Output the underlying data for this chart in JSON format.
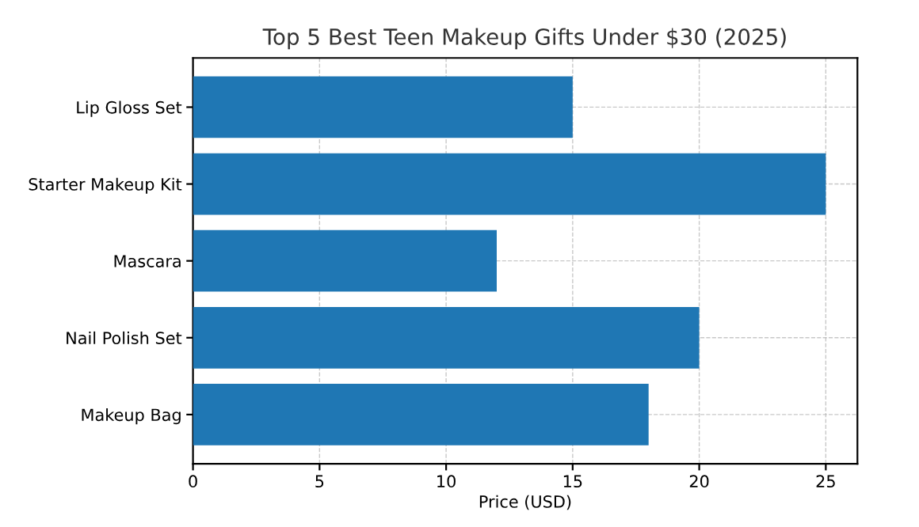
{
  "chart_data": {
    "type": "bar",
    "orientation": "horizontal",
    "title": "Top 5 Best Teen Makeup Gifts Under $30 (2025)",
    "xlabel": "Price (USD)",
    "categories": [
      "Lip Gloss Set",
      "Starter Makeup Kit",
      "Mascara",
      "Nail Polish Set",
      "Makeup Bag"
    ],
    "values": [
      15,
      25,
      12,
      20,
      18
    ],
    "color": "#1f77b4",
    "xlim": [
      0,
      26.25
    ],
    "xticks": [
      0,
      5,
      10,
      15,
      20,
      25
    ],
    "grid": true
  }
}
